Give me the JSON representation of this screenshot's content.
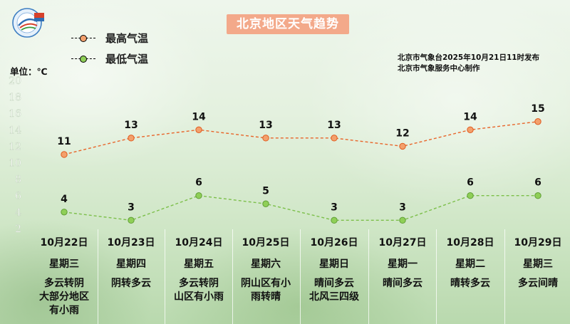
{
  "title": "北京地区天气趋势",
  "source_lines": [
    "北京市气象台2025年10月21日11时发布",
    "北京市气象服务中心制作"
  ],
  "unit_label": "单位：℃",
  "legend": {
    "max": "最高气温",
    "min": "最低气温"
  },
  "colors": {
    "max": "#e8652a",
    "min": "#7cbf4a",
    "title_bg": "#f3a98a"
  },
  "days": [
    {
      "date": "10月22日",
      "weekday": "星期三",
      "weather": [
        "多云转阴",
        "大部分地区",
        "有小雨"
      ]
    },
    {
      "date": "10月23日",
      "weekday": "星期四",
      "weather": [
        "阴转多云"
      ]
    },
    {
      "date": "10月24日",
      "weekday": "星期五",
      "weather": [
        "多云转阴",
        "山区有小雨"
      ]
    },
    {
      "date": "10月25日",
      "weekday": "星期六",
      "weather": [
        "阴山区有小",
        "雨转晴"
      ]
    },
    {
      "date": "10月26日",
      "weekday": "星期日",
      "weather": [
        "晴间多云",
        "北风三四级"
      ]
    },
    {
      "date": "10月27日",
      "weekday": "星期一",
      "weather": [
        "晴间多云"
      ]
    },
    {
      "date": "10月28日",
      "weekday": "星期二",
      "weather": [
        "晴转多云"
      ]
    },
    {
      "date": "10月29日",
      "weekday": "星期三",
      "weather": [
        "多云间晴"
      ]
    }
  ],
  "chart_data": {
    "type": "line",
    "categories": [
      "10月22日",
      "10月23日",
      "10月24日",
      "10月25日",
      "10月26日",
      "10月27日",
      "10月28日",
      "10月29日"
    ],
    "series": [
      {
        "name": "最高气温",
        "values": [
          11,
          13,
          14,
          13,
          13,
          12,
          14,
          15
        ]
      },
      {
        "name": "最低气温",
        "values": [
          4,
          3,
          6,
          5,
          3,
          3,
          6,
          6
        ]
      }
    ],
    "y_ticks": [
      2,
      4,
      6,
      8,
      10,
      12,
      14,
      16,
      18,
      20
    ],
    "ylim": [
      2,
      20
    ],
    "ylabel": "单位：℃",
    "grid": false,
    "legend_position": "top-left",
    "data_labels": true
  }
}
